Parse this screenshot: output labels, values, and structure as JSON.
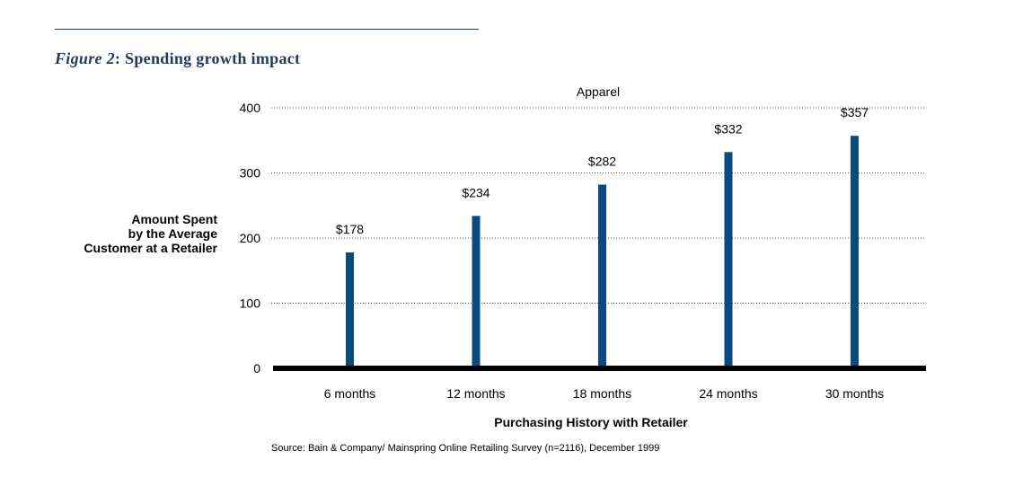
{
  "caption": {
    "figure_label": "Figure 2",
    "separator": ":",
    "title": "Spending growth impact"
  },
  "ylabel_lines": [
    "Amount Spent",
    "by the Average",
    "Customer at a Retailer"
  ],
  "source": "Source: Bain & Company/ Mainspring Online Retailing Survey (n=2116), December 1999",
  "colors": {
    "bar": "#0b4a80",
    "axis": "#000000",
    "caption": "#1f3a5f"
  },
  "chart_data": {
    "type": "bar",
    "title": "Apparel",
    "categories": [
      "6 months",
      "12 months",
      "18 months",
      "24 months",
      "30 months"
    ],
    "values": [
      178,
      234,
      282,
      332,
      357
    ],
    "value_labels": [
      "$178",
      "$234",
      "$282",
      "$332",
      "$357"
    ],
    "xlabel": "Purchasing History with Retailer",
    "ylabel": "Amount Spent by the Average Customer at a Retailer",
    "ylim": [
      0,
      400
    ],
    "yticks": [
      0,
      100,
      200,
      300,
      400
    ],
    "grid": true,
    "legend": "none"
  }
}
